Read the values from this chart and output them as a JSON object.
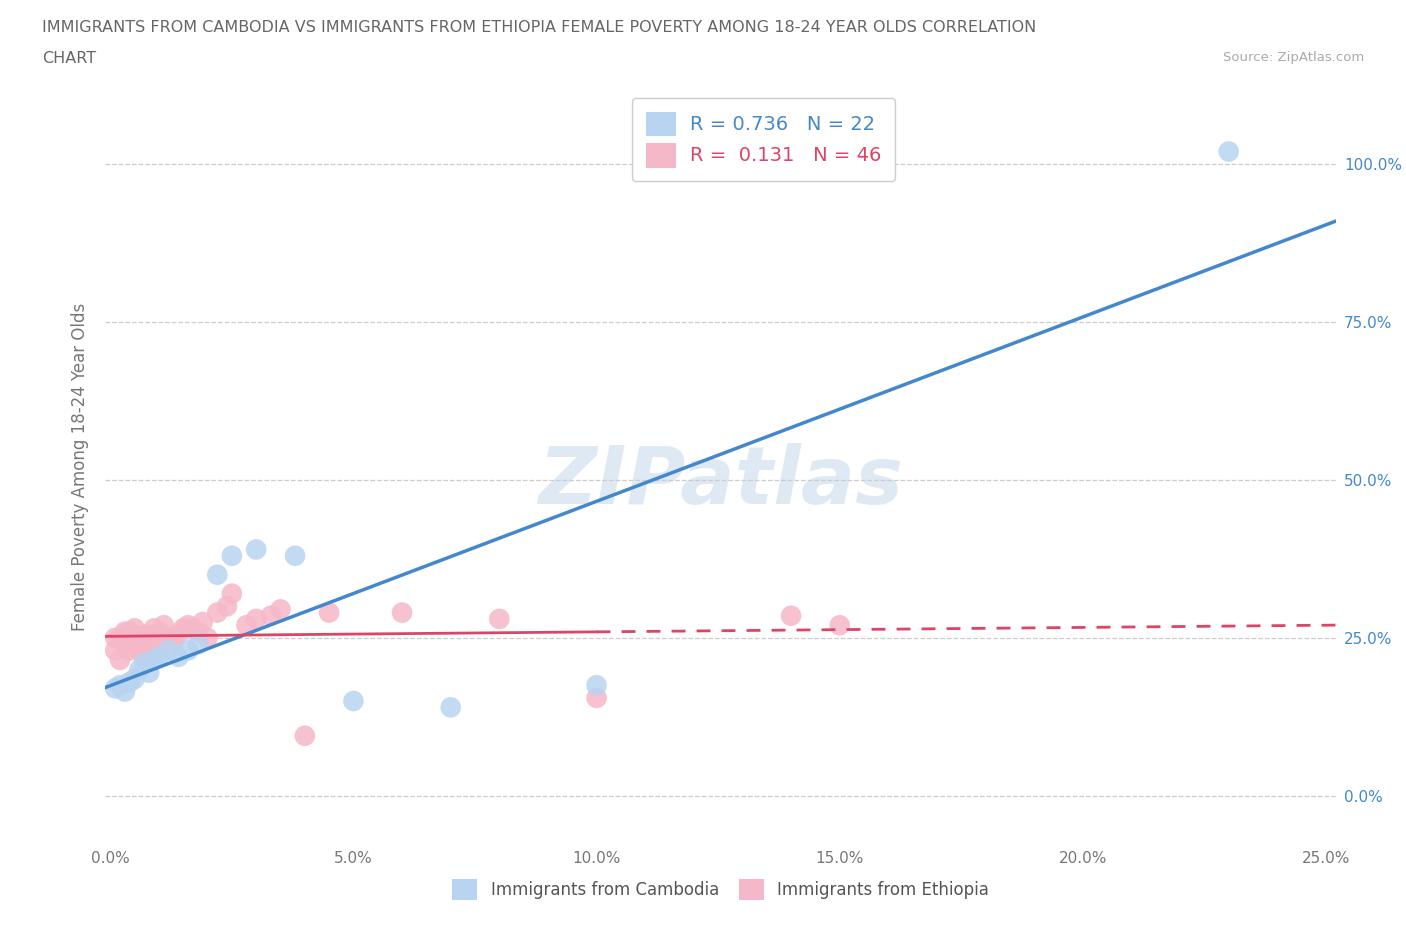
{
  "title_line1": "IMMIGRANTS FROM CAMBODIA VS IMMIGRANTS FROM ETHIOPIA FEMALE POVERTY AMONG 18-24 YEAR OLDS CORRELATION",
  "title_line2": "CHART",
  "source": "Source: ZipAtlas.com",
  "ylabel": "Female Poverty Among 18-24 Year Olds",
  "xlim": [
    -0.001,
    0.252
  ],
  "ylim": [
    -0.08,
    1.12
  ],
  "yticks": [
    0.0,
    0.25,
    0.5,
    0.75,
    1.0
  ],
  "ytick_labels": [
    "0.0%",
    "25.0%",
    "50.0%",
    "75.0%",
    "100.0%"
  ],
  "xticks": [
    0.0,
    0.05,
    0.1,
    0.15,
    0.2,
    0.25
  ],
  "xtick_labels": [
    "0.0%",
    "5.0%",
    "10.0%",
    "15.0%",
    "20.0%",
    "25.0%"
  ],
  "cambodia_fill_color": "#b8d4f0",
  "ethiopia_fill_color": "#f5b8c8",
  "cambodia_line_color": "#4488cc",
  "ethiopia_line_color": "#dd4466",
  "R_cambodia": "0.736",
  "N_cambodia": 22,
  "R_ethiopia": "0.131",
  "N_ethiopia": 46,
  "background_color": "#ffffff",
  "grid_color": "#cccccc",
  "cambodia_x": [
    0.001,
    0.002,
    0.003,
    0.004,
    0.005,
    0.006,
    0.007,
    0.008,
    0.009,
    0.01,
    0.012,
    0.014,
    0.016,
    0.018,
    0.022,
    0.025,
    0.03,
    0.038,
    0.05,
    0.07,
    0.1,
    0.23
  ],
  "cambodia_y": [
    0.17,
    0.175,
    0.165,
    0.18,
    0.185,
    0.2,
    0.21,
    0.195,
    0.215,
    0.22,
    0.23,
    0.22,
    0.23,
    0.24,
    0.35,
    0.38,
    0.39,
    0.38,
    0.15,
    0.14,
    0.175,
    1.02
  ],
  "ethiopia_x": [
    0.001,
    0.001,
    0.002,
    0.002,
    0.003,
    0.003,
    0.003,
    0.004,
    0.004,
    0.005,
    0.005,
    0.005,
    0.006,
    0.006,
    0.007,
    0.007,
    0.008,
    0.008,
    0.009,
    0.009,
    0.01,
    0.01,
    0.011,
    0.012,
    0.013,
    0.014,
    0.015,
    0.016,
    0.017,
    0.018,
    0.019,
    0.02,
    0.022,
    0.024,
    0.025,
    0.028,
    0.03,
    0.033,
    0.035,
    0.04,
    0.045,
    0.06,
    0.08,
    0.1,
    0.14,
    0.15
  ],
  "ethiopia_y": [
    0.23,
    0.25,
    0.215,
    0.25,
    0.24,
    0.255,
    0.26,
    0.23,
    0.26,
    0.24,
    0.25,
    0.265,
    0.23,
    0.25,
    0.23,
    0.255,
    0.22,
    0.255,
    0.235,
    0.265,
    0.235,
    0.26,
    0.27,
    0.25,
    0.245,
    0.255,
    0.265,
    0.27,
    0.265,
    0.26,
    0.275,
    0.25,
    0.29,
    0.3,
    0.32,
    0.27,
    0.28,
    0.285,
    0.295,
    0.095,
    0.29,
    0.29,
    0.28,
    0.155,
    0.285,
    0.27
  ]
}
